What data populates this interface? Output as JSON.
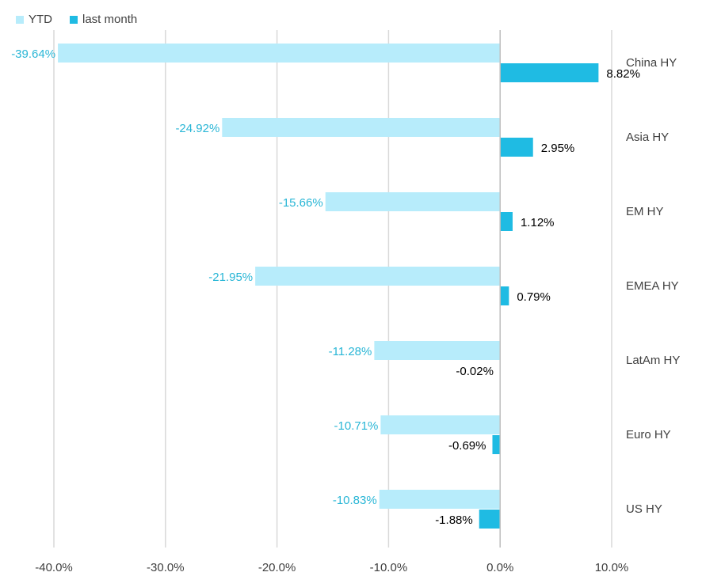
{
  "chart_data": {
    "type": "bar",
    "orientation": "horizontal",
    "categories": [
      "China HY",
      "Asia HY",
      "EM HY",
      "EMEA HY",
      "LatAm HY",
      "Euro HY",
      "US HY"
    ],
    "series": [
      {
        "name": "YTD",
        "color": "#b7ecfb",
        "values": [
          -39.64,
          -24.92,
          -15.66,
          -21.95,
          -11.28,
          -10.71,
          -10.83
        ],
        "labels": [
          "-39.64%",
          "-24.92%",
          "-15.66%",
          "-21.95%",
          "-11.28%",
          "-10.71%",
          "-10.83%"
        ]
      },
      {
        "name": "last month",
        "color": "#1fbbe3",
        "values": [
          8.82,
          2.95,
          1.12,
          0.79,
          -0.02,
          -0.69,
          -1.88
        ],
        "labels": [
          "8.82%",
          "2.95%",
          "1.12%",
          "0.79%",
          "-0.02%",
          "-0.69%",
          "-1.88%"
        ]
      }
    ],
    "xlim": [
      -40,
      10
    ],
    "xticks": [
      -40,
      -30,
      -20,
      -10,
      0,
      10
    ],
    "xtick_labels": [
      "-40.0%",
      "-30.0%",
      "-20.0%",
      "-10.0%",
      "0.0%",
      "10.0%"
    ],
    "grid": true,
    "legend_position": "top-left",
    "ytd_label_color": "#29b6d6",
    "lastmonth_label_color": "#000000",
    "axis_label_color": "#404040",
    "grid_color": "#d9d9d9"
  }
}
